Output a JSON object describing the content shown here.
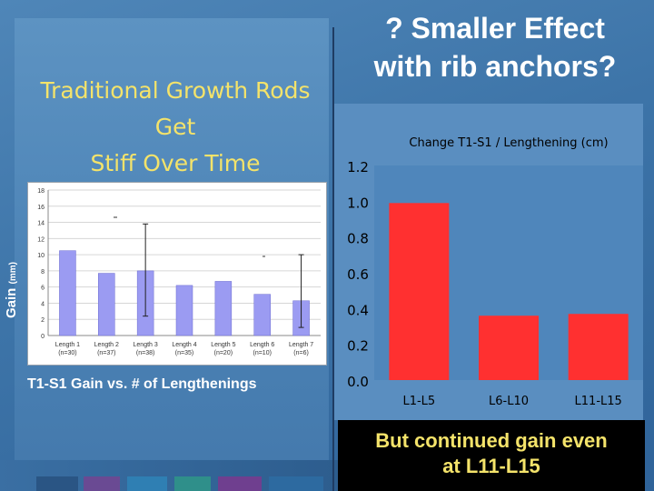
{
  "left": {
    "title_lines": [
      "Traditional Growth Rods",
      "Get",
      "Stiff Over Time"
    ],
    "y_label": "Gain",
    "y_unit": "(mm)",
    "caption": "T1-S1 Gain vs. # of Lengthenings"
  },
  "right": {
    "title_lines": [
      "? Smaller  Effect",
      "with rib anchors?"
    ],
    "footer_lines": [
      "But continued gain even",
      "at L11-L15"
    ]
  },
  "chart_data": [
    {
      "type": "bar",
      "title": "",
      "categories": [
        "Length 1",
        "Length 2",
        "Length 3",
        "Length 4",
        "Length 5",
        "Length 6",
        "Length 7"
      ],
      "category_notes": [
        "(n=30)",
        "(n=37)",
        "(n=38)",
        "(n=35)",
        "(n=20)",
        "(n=10)",
        "(n=6)"
      ],
      "values": [
        10.5,
        7.7,
        8.0,
        6.2,
        6.7,
        5.1,
        4.3
      ],
      "error_upper": [
        10.5,
        7.7,
        13.8,
        6.2,
        6.7,
        5.1,
        10.0
      ],
      "error_lower": [
        10.5,
        7.7,
        2.4,
        6.2,
        6.7,
        5.1,
        1.0
      ],
      "ylim": [
        0,
        18
      ],
      "ticks": [
        "0",
        "2",
        "4",
        "6",
        "8",
        "10",
        "12",
        "14",
        "16",
        "18"
      ],
      "grid": true,
      "bar_color": "#9b9bf2",
      "xlabel": "",
      "ylabel": ""
    },
    {
      "type": "bar",
      "title": "Change T1-S1 / Lengthening (cm)",
      "categories": [
        "L1-L5",
        "L6-L10",
        "L11-L15"
      ],
      "values": [
        0.99,
        0.36,
        0.37
      ],
      "ylim": [
        0,
        1.2
      ],
      "ticks": [
        "0.0",
        "0.2",
        "0.4",
        "0.6",
        "0.8",
        "1.0",
        "1.2"
      ],
      "bar_color": "#ff3030",
      "grid": false,
      "xlabel": "",
      "ylabel": ""
    }
  ]
}
